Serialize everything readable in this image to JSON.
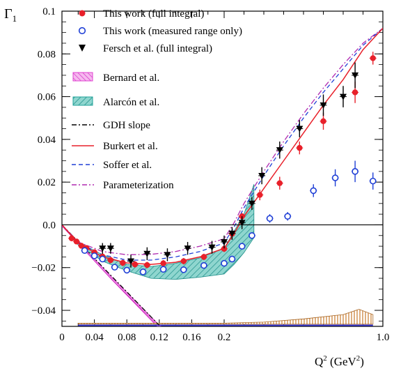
{
  "chart_data": {
    "type": "scatter",
    "y_label": "Γ",
    "y_label_sub": "1",
    "x_label": "Q",
    "x_label_sup": "2",
    "x_label_unit_open": " (GeV",
    "x_label_unit_sup": "2",
    "x_label_unit_close": ")",
    "x_scale": "piecewise-linear (0–0.2 expanded, 0.2–1.0 compressed)",
    "x_ticks": [
      {
        "v": 0,
        "label": "0"
      },
      {
        "v": 0.04,
        "label": "0.04"
      },
      {
        "v": 0.08,
        "label": "0.08"
      },
      {
        "v": 0.12,
        "label": "0.12"
      },
      {
        "v": 0.16,
        "label": "0.16"
      },
      {
        "v": 0.2,
        "label": "0.2"
      },
      {
        "v": 1.0,
        "label": "1.0"
      }
    ],
    "x_minor_ticks": [
      0.02,
      0.06,
      0.1,
      0.14,
      0.18,
      0.3,
      0.4,
      0.5,
      0.6,
      0.7,
      0.8,
      0.9
    ],
    "y_ticks": [
      {
        "v": 0.1,
        "label": "0.1"
      },
      {
        "v": 0.08,
        "label": "0.08"
      },
      {
        "v": 0.06,
        "label": "0.06"
      },
      {
        "v": 0.04,
        "label": "0.04"
      },
      {
        "v": 0.02,
        "label": "0.02"
      },
      {
        "v": 0.0,
        "label": "0.0"
      },
      {
        "v": -0.02,
        "label": "−0.02"
      },
      {
        "v": -0.04,
        "label": "−0.04"
      }
    ],
    "ylim": [
      -0.0475,
      0.1
    ],
    "xlim": [
      0,
      1.0
    ],
    "zero_line": true,
    "legend_placement": "top-left",
    "legend": [
      {
        "key": "this_full",
        "label": "This work (full integral)",
        "symbol": "filled-circle",
        "color": "#e8202a"
      },
      {
        "key": "this_meas",
        "label": "This work (measured range only)",
        "symbol": "open-circle",
        "color": "#1f3fd6"
      },
      {
        "key": "fersch",
        "label": "Fersch et al. (full integral)",
        "symbol": "down-triangle",
        "color": "#000000"
      },
      {
        "key": "bernard",
        "label": "Bernard et al.",
        "symbol": "hatched-band",
        "color": "#e040d0"
      },
      {
        "key": "alarcon",
        "label": "Alarcón et al.",
        "symbol": "hatched-band",
        "color": "#1fa39a"
      },
      {
        "key": "gdh",
        "label": "GDH slope",
        "symbol": "dashdot-line",
        "color": "#000000"
      },
      {
        "key": "burkert",
        "label": "Burkert et al.",
        "symbol": "solid-line",
        "color": "#e8202a"
      },
      {
        "key": "soffer",
        "label": "Soffer et al.",
        "symbol": "dashed-line",
        "color": "#1f3fd6"
      },
      {
        "key": "param",
        "label": "Parameterization",
        "symbol": "dashdot-line",
        "color": "#b02ab0"
      }
    ],
    "series": [
      {
        "name": "This work (full integral)",
        "key": "this_full",
        "points": [
          {
            "x": 0.012,
            "y": -0.0063,
            "err": 0.001
          },
          {
            "x": 0.018,
            "y": -0.0078,
            "err": 0.001
          },
          {
            "x": 0.024,
            "y": -0.0098,
            "err": 0.001
          },
          {
            "x": 0.03,
            "y": -0.0108,
            "err": 0.001
          },
          {
            "x": 0.04,
            "y": -0.0128,
            "err": 0.001
          },
          {
            "x": 0.05,
            "y": -0.0148,
            "err": 0.0015
          },
          {
            "x": 0.06,
            "y": -0.0165,
            "err": 0.0015
          },
          {
            "x": 0.075,
            "y": -0.0178,
            "err": 0.0015
          },
          {
            "x": 0.09,
            "y": -0.0185,
            "err": 0.0015
          },
          {
            "x": 0.105,
            "y": -0.0188,
            "err": 0.0015
          },
          {
            "x": 0.125,
            "y": -0.018,
            "err": 0.0015
          },
          {
            "x": 0.15,
            "y": -0.017,
            "err": 0.0015
          },
          {
            "x": 0.175,
            "y": -0.015,
            "err": 0.0015
          },
          {
            "x": 0.2,
            "y": -0.0112,
            "err": 0.0015
          },
          {
            "x": 0.24,
            "y": -0.0042,
            "err": 0.0015
          },
          {
            "x": 0.29,
            "y": 0.004,
            "err": 0.0015
          },
          {
            "x": 0.38,
            "y": 0.014,
            "err": 0.0025
          },
          {
            "x": 0.48,
            "y": 0.0195,
            "err": 0.003
          },
          {
            "x": 0.58,
            "y": 0.036,
            "err": 0.003
          },
          {
            "x": 0.7,
            "y": 0.0485,
            "err": 0.004
          },
          {
            "x": 0.86,
            "y": 0.062,
            "err": 0.005
          },
          {
            "x": 0.95,
            "y": 0.078,
            "err": 0.003
          }
        ]
      },
      {
        "name": "This work (measured range only)",
        "key": "this_meas",
        "points": [
          {
            "x": 0.028,
            "y": -0.012,
            "err": 0.001
          },
          {
            "x": 0.04,
            "y": -0.0145,
            "err": 0.001
          },
          {
            "x": 0.05,
            "y": -0.016,
            "err": 0.001
          },
          {
            "x": 0.065,
            "y": -0.0198,
            "err": 0.001
          },
          {
            "x": 0.08,
            "y": -0.0212,
            "err": 0.0012
          },
          {
            "x": 0.1,
            "y": -0.022,
            "err": 0.0012
          },
          {
            "x": 0.125,
            "y": -0.0208,
            "err": 0.0012
          },
          {
            "x": 0.15,
            "y": -0.021,
            "err": 0.0012
          },
          {
            "x": 0.175,
            "y": -0.019,
            "err": 0.0012
          },
          {
            "x": 0.2,
            "y": -0.018,
            "err": 0.0012
          },
          {
            "x": 0.24,
            "y": -0.016,
            "err": 0.0012
          },
          {
            "x": 0.29,
            "y": -0.01,
            "err": 0.0012
          },
          {
            "x": 0.34,
            "y": -0.005,
            "err": 0.0015
          },
          {
            "x": 0.43,
            "y": 0.003,
            "err": 0.002
          },
          {
            "x": 0.52,
            "y": 0.004,
            "err": 0.002
          },
          {
            "x": 0.65,
            "y": 0.016,
            "err": 0.003
          },
          {
            "x": 0.76,
            "y": 0.022,
            "err": 0.004
          },
          {
            "x": 0.86,
            "y": 0.025,
            "err": 0.005
          },
          {
            "x": 0.95,
            "y": 0.0205,
            "err": 0.004
          }
        ]
      },
      {
        "name": "Fersch et al. (full integral)",
        "key": "fersch",
        "points": [
          {
            "x": 0.05,
            "y": -0.011,
            "err": 0.0025
          },
          {
            "x": 0.06,
            "y": -0.011,
            "err": 0.0025
          },
          {
            "x": 0.085,
            "y": -0.017,
            "err": 0.003
          },
          {
            "x": 0.105,
            "y": -0.0135,
            "err": 0.003
          },
          {
            "x": 0.13,
            "y": -0.014,
            "err": 0.003
          },
          {
            "x": 0.155,
            "y": -0.011,
            "err": 0.003
          },
          {
            "x": 0.185,
            "y": -0.0105,
            "err": 0.003
          },
          {
            "x": 0.2,
            "y": -0.008,
            "err": 0.003
          },
          {
            "x": 0.24,
            "y": -0.004,
            "err": 0.003
          },
          {
            "x": 0.29,
            "y": 0.001,
            "err": 0.003
          },
          {
            "x": 0.34,
            "y": 0.01,
            "err": 0.003
          },
          {
            "x": 0.39,
            "y": 0.023,
            "err": 0.004
          },
          {
            "x": 0.48,
            "y": 0.035,
            "err": 0.004
          },
          {
            "x": 0.58,
            "y": 0.045,
            "err": 0.004
          },
          {
            "x": 0.7,
            "y": 0.056,
            "err": 0.005
          },
          {
            "x": 0.8,
            "y": 0.06,
            "err": 0.005
          },
          {
            "x": 0.86,
            "y": 0.07,
            "err": 0.006
          }
        ]
      }
    ],
    "curves": {
      "burkert": [
        [
          0.0,
          0.0
        ],
        [
          0.02,
          -0.0085
        ],
        [
          0.05,
          -0.015
        ],
        [
          0.08,
          -0.0178
        ],
        [
          0.11,
          -0.0185
        ],
        [
          0.14,
          -0.0175
        ],
        [
          0.17,
          -0.015
        ],
        [
          0.2,
          -0.011
        ],
        [
          0.25,
          -0.004
        ],
        [
          0.3,
          0.004
        ],
        [
          0.4,
          0.017
        ],
        [
          0.5,
          0.03
        ],
        [
          0.6,
          0.043
        ],
        [
          0.7,
          0.056
        ],
        [
          0.8,
          0.068
        ],
        [
          0.9,
          0.082
        ],
        [
          1.0,
          0.092
        ]
      ],
      "soffer": [
        [
          0.0,
          0.0
        ],
        [
          0.02,
          -0.0085
        ],
        [
          0.05,
          -0.014
        ],
        [
          0.08,
          -0.0165
        ],
        [
          0.11,
          -0.0165
        ],
        [
          0.14,
          -0.015
        ],
        [
          0.17,
          -0.0125
        ],
        [
          0.2,
          -0.0085
        ],
        [
          0.25,
          -0.001
        ],
        [
          0.3,
          0.008
        ],
        [
          0.4,
          0.023
        ],
        [
          0.5,
          0.037
        ],
        [
          0.6,
          0.05
        ],
        [
          0.7,
          0.062
        ],
        [
          0.8,
          0.073
        ],
        [
          0.9,
          0.084
        ],
        [
          1.0,
          0.092
        ]
      ],
      "param": [
        [
          0.0,
          0.0
        ],
        [
          0.02,
          -0.008
        ],
        [
          0.05,
          -0.0125
        ],
        [
          0.08,
          -0.014
        ],
        [
          0.11,
          -0.0138
        ],
        [
          0.14,
          -0.0125
        ],
        [
          0.17,
          -0.01
        ],
        [
          0.2,
          -0.0065
        ],
        [
          0.25,
          0.001
        ],
        [
          0.3,
          0.01
        ],
        [
          0.4,
          0.025
        ],
        [
          0.5,
          0.039
        ],
        [
          0.6,
          0.052
        ],
        [
          0.7,
          0.064
        ],
        [
          0.8,
          0.075
        ],
        [
          0.9,
          0.085
        ],
        [
          1.0,
          0.092
        ]
      ],
      "gdh": [
        [
          0.0,
          0.0
        ],
        [
          0.12,
          -0.047
        ]
      ],
      "bernard_upper": [
        [
          0.0,
          0.0
        ],
        [
          0.06,
          -0.024
        ],
        [
          0.12,
          -0.047
        ],
        [
          0.128,
          -0.049
        ]
      ],
      "bernard_lower": [
        [
          0.0,
          -0.0005
        ],
        [
          0.06,
          -0.025
        ],
        [
          0.12,
          -0.0485
        ],
        [
          0.125,
          -0.05
        ]
      ],
      "alarcon_upper": [
        [
          0.015,
          -0.007
        ],
        [
          0.05,
          -0.014
        ],
        [
          0.08,
          -0.0185
        ],
        [
          0.11,
          -0.0195
        ],
        [
          0.14,
          -0.018
        ],
        [
          0.17,
          -0.0155
        ],
        [
          0.2,
          -0.011
        ],
        [
          0.25,
          -0.003
        ],
        [
          0.3,
          0.005
        ],
        [
          0.35,
          0.019
        ]
      ],
      "alarcon_lower": [
        [
          0.015,
          -0.008
        ],
        [
          0.05,
          -0.017
        ],
        [
          0.08,
          -0.0215
        ],
        [
          0.11,
          -0.025
        ],
        [
          0.14,
          -0.0255
        ],
        [
          0.17,
          -0.0245
        ],
        [
          0.2,
          -0.023
        ],
        [
          0.25,
          -0.0185
        ],
        [
          0.3,
          -0.013
        ],
        [
          0.35,
          -0.006
        ]
      ],
      "syst_band_upper": [
        [
          0.02,
          -0.046
        ],
        [
          0.2,
          -0.046
        ],
        [
          0.4,
          -0.0455
        ],
        [
          0.6,
          -0.044
        ],
        [
          0.8,
          -0.042
        ],
        [
          0.88,
          -0.0395
        ],
        [
          0.95,
          -0.042
        ]
      ],
      "syst_band_lower": [
        [
          0.02,
          -0.0465
        ],
        [
          0.95,
          -0.0465
        ]
      ],
      "baseline": [
        [
          0.02,
          -0.047
        ],
        [
          0.95,
          -0.047
        ]
      ]
    }
  }
}
